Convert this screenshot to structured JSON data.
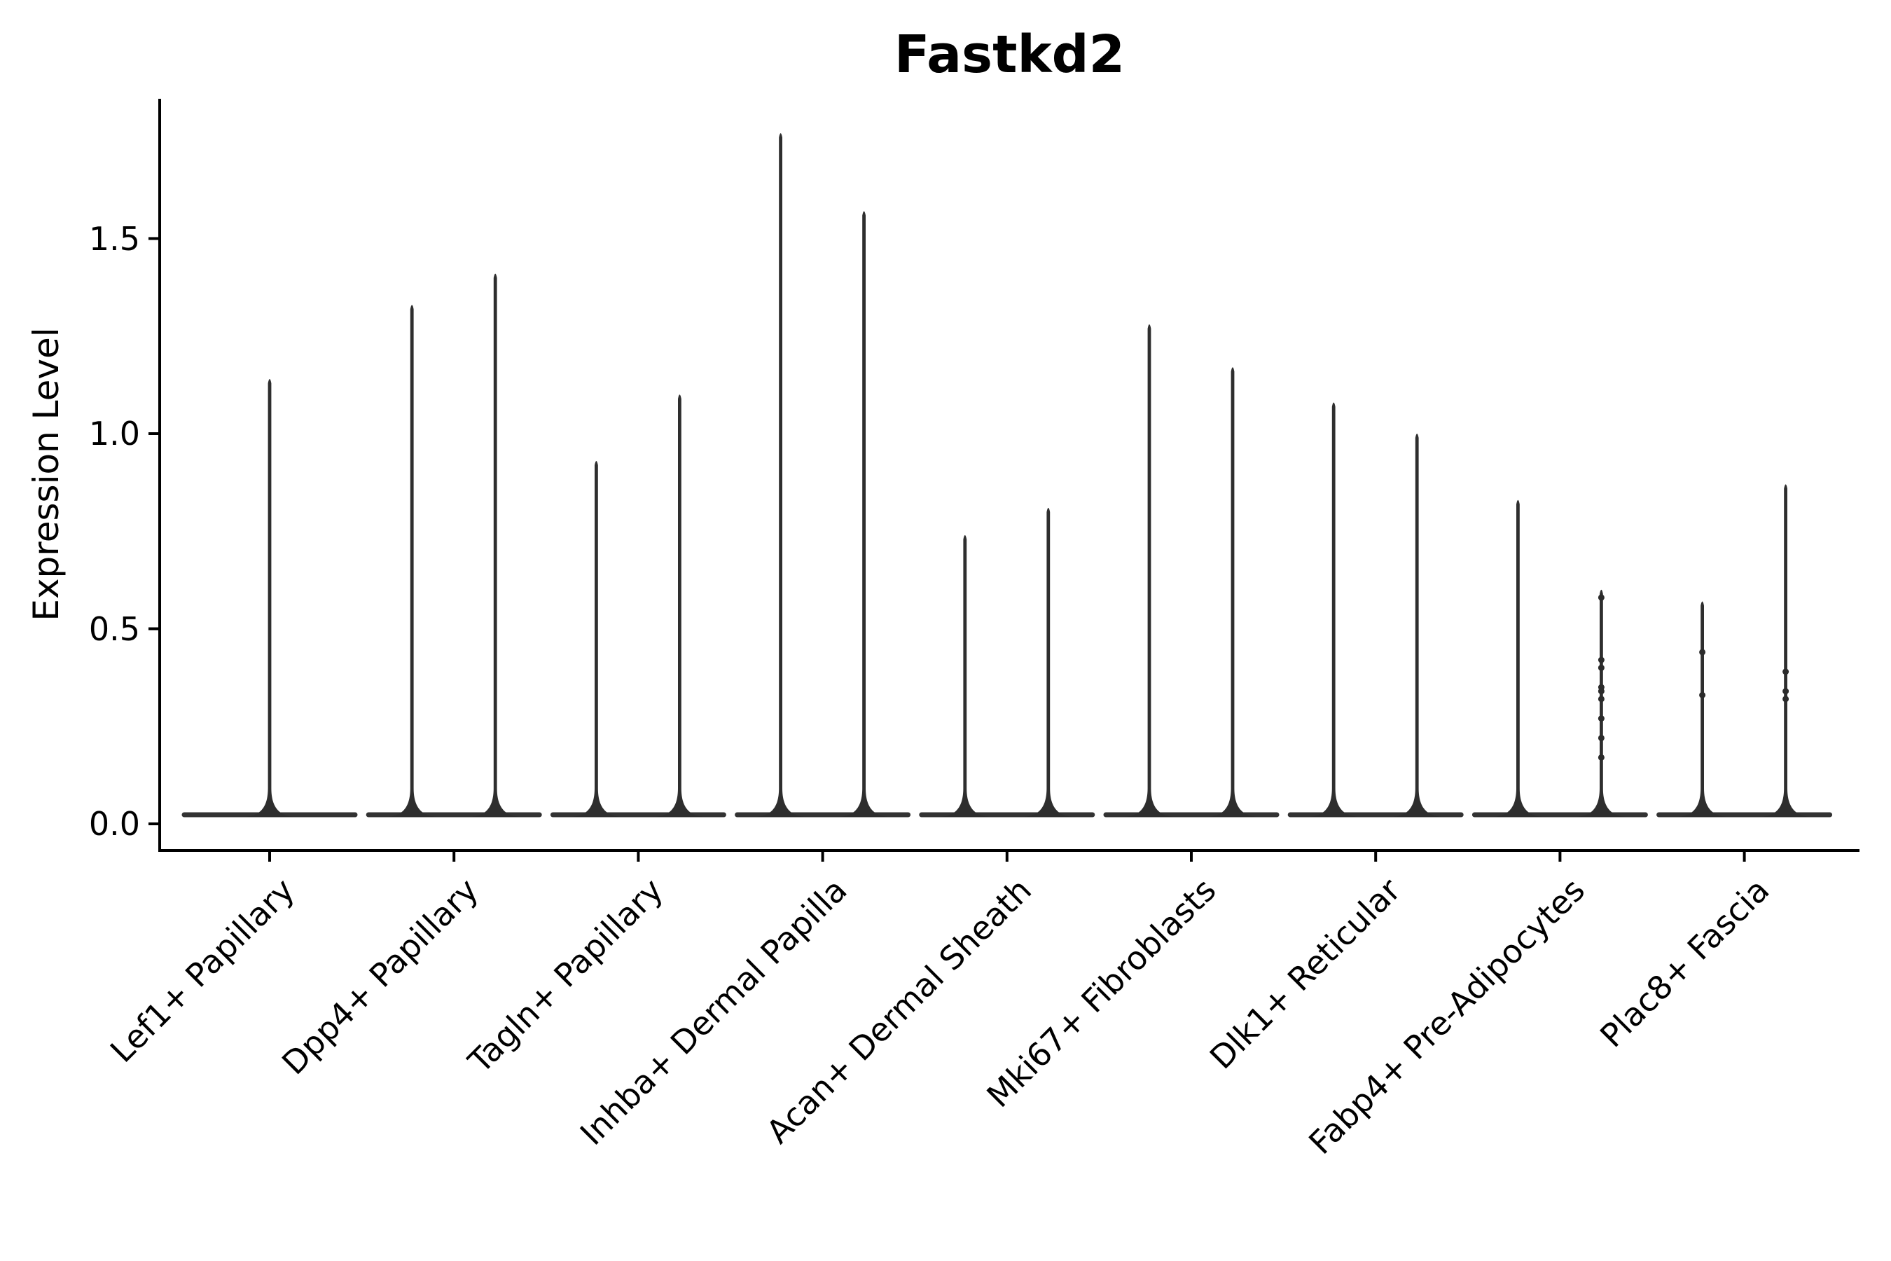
{
  "figure": {
    "title": "Fastkd2",
    "ylabel": "Expression Level",
    "background_color": "#ffffff",
    "text_color": "#000000",
    "spine_color": "#000000",
    "violin_color": "#2e2e2e",
    "baseline_color": "#333333",
    "point_color": "#2b2b2b"
  },
  "chart_data": {
    "type": "violin",
    "title": "Fastkd2",
    "xlabel": "",
    "ylabel": "Expression Level",
    "ylim": [
      -0.06,
      1.86
    ],
    "grid": false,
    "legend": "none",
    "description": "Single-cell expression violin plot; each category shows a wide flat violin body at expression 0 with thin vertical density spikes reaching the maximum expressed cells. Categories 2-9 have two spikes (left/right), category 1 has a single central spike.",
    "yticks": [
      {
        "label": "0.0",
        "value": 0.0
      },
      {
        "label": "0.5",
        "value": 0.5
      },
      {
        "label": "1.0",
        "value": 1.0
      },
      {
        "label": "1.5",
        "value": 1.5
      }
    ],
    "categories": [
      "Lef1+ Papillary",
      "Dpp4+ Papillary",
      "Tagln+ Papillary",
      "Inhba+ Dermal Papilla",
      "Acan+ Dermal Sheath",
      "Mki67+ Fibroblasts",
      "Dlk1+ Reticular",
      "Fabp4+ Pre-Adipocytes",
      "Plac8+ Fascia"
    ],
    "violins": [
      {
        "label": "Lef1+ Papillary",
        "baseline_value": 0.0,
        "spike_maxima": [
          1.14
        ],
        "points_left": [],
        "points_right": []
      },
      {
        "label": "Dpp4+ Papillary",
        "baseline_value": 0.0,
        "spike_maxima": [
          1.33,
          1.41
        ],
        "points_left": [],
        "points_right": []
      },
      {
        "label": "Tagln+ Papillary",
        "baseline_value": 0.0,
        "spike_maxima": [
          0.93,
          1.1
        ],
        "points_left": [],
        "points_right": []
      },
      {
        "label": "Inhba+ Dermal Papilla",
        "baseline_value": 0.0,
        "spike_maxima": [
          1.77,
          1.57
        ],
        "points_left": [],
        "points_right": []
      },
      {
        "label": "Acan+ Dermal Sheath",
        "baseline_value": 0.0,
        "spike_maxima": [
          0.74,
          0.81
        ],
        "points_left": [],
        "points_right": []
      },
      {
        "label": "Mki67+ Fibroblasts",
        "baseline_value": 0.0,
        "spike_maxima": [
          1.28,
          1.17
        ],
        "points_left": [],
        "points_right": []
      },
      {
        "label": "Dlk1+ Reticular",
        "baseline_value": 0.0,
        "spike_maxima": [
          1.08,
          1.0
        ],
        "points_left": [],
        "points_right": []
      },
      {
        "label": "Fabp4+ Pre-Adipocytes",
        "baseline_value": 0.0,
        "spike_maxima": [
          0.83,
          0.6
        ],
        "points_left": [],
        "points_right": [
          0.58,
          0.42,
          0.4,
          0.35,
          0.34,
          0.32,
          0.27,
          0.22,
          0.17
        ]
      },
      {
        "label": "Plac8+ Fascia",
        "baseline_value": 0.0,
        "spike_maxima": [
          0.57,
          0.87
        ],
        "points_left": [
          0.44,
          0.33
        ],
        "points_right": [
          0.39,
          0.34,
          0.32
        ]
      }
    ]
  }
}
